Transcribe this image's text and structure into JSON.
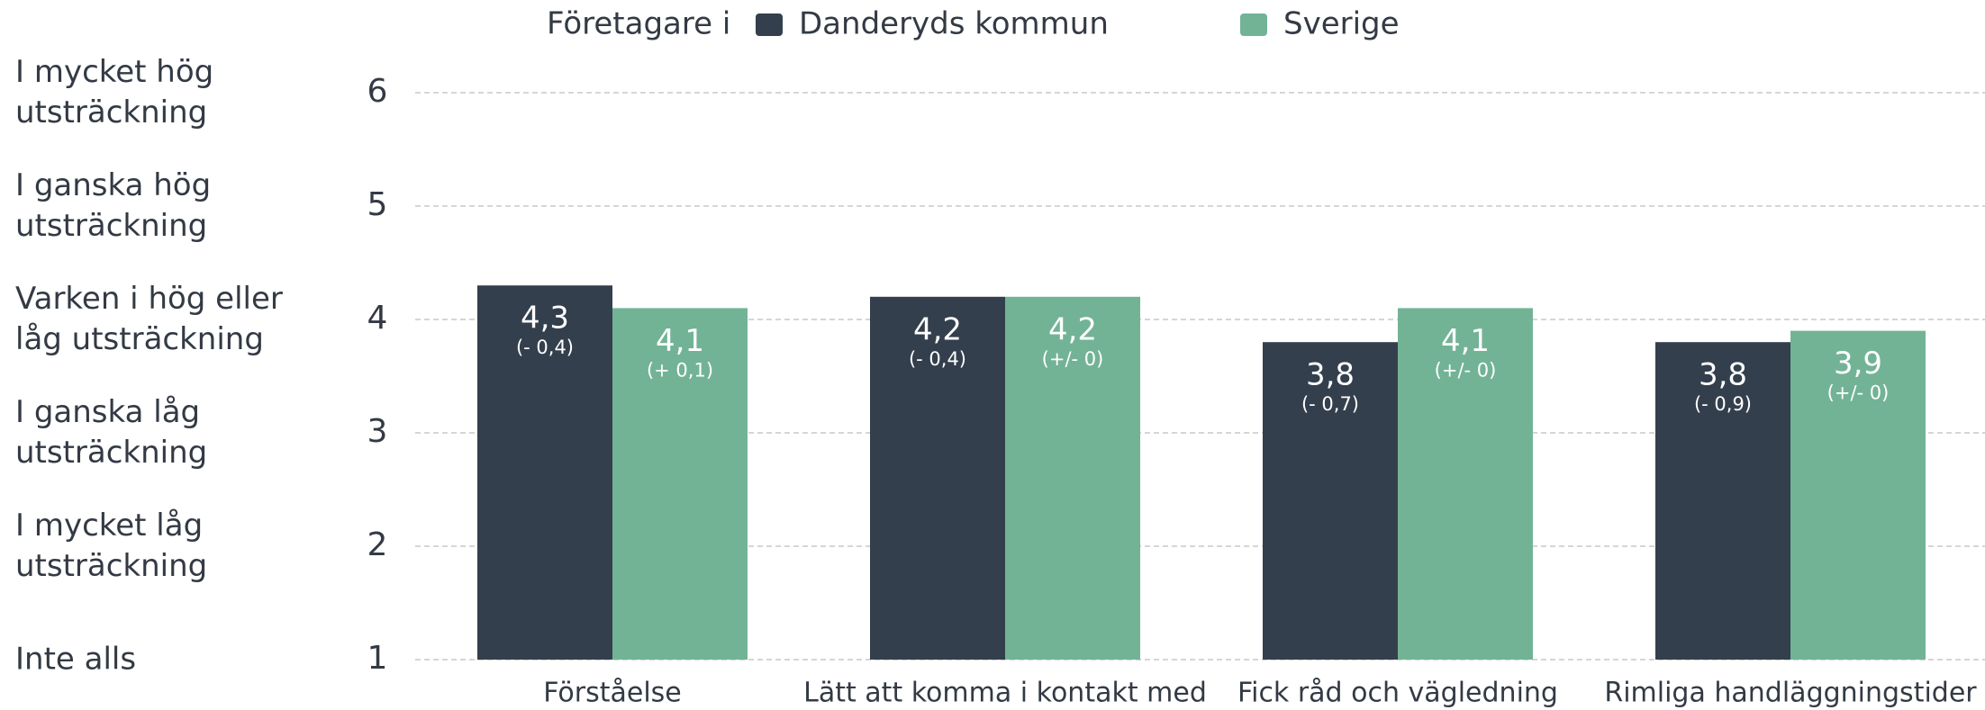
{
  "chart_data": {
    "type": "bar",
    "legend_title": "Företagare i",
    "categories": [
      "Förståelse",
      "Lätt att komma i kontakt med",
      "Fick råd och vägledning",
      "Rimliga handläggningstider"
    ],
    "series": [
      {
        "name": "Danderyds kommun",
        "color": "#333f4c",
        "values": [
          4.3,
          4.2,
          3.8,
          3.8
        ],
        "value_labels": [
          "4,3",
          "4,2",
          "3,8",
          "3,8"
        ],
        "diff_labels": [
          "(- 0,4)",
          "(- 0,4)",
          "(- 0,7)",
          "(- 0,9)"
        ]
      },
      {
        "name": "Sverige",
        "color": "#72b396",
        "values": [
          4.1,
          4.2,
          4.1,
          3.9
        ],
        "value_labels": [
          "4,1",
          "4,2",
          "4,1",
          "3,9"
        ],
        "diff_labels": [
          "(+ 0,1)",
          "(+/- 0)",
          "(+/- 0)",
          "(+/- 0)"
        ]
      }
    ],
    "ylim": [
      1,
      6
    ],
    "yticks": [
      1,
      2,
      3,
      4,
      5,
      6
    ],
    "scale_labels": [
      "Inte alls",
      "I mycket låg utsträckning",
      "I ganska låg utsträckning",
      "Varken i hög eller låg utsträckning",
      "I ganska hög utsträckning",
      "I mycket hög utsträckning"
    ],
    "grid": true
  }
}
